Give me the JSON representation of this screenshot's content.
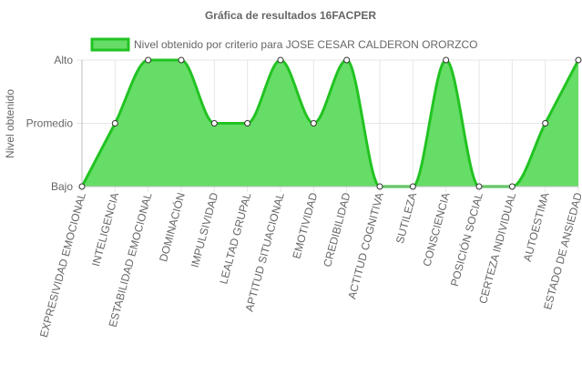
{
  "chart_data": {
    "type": "line",
    "title": "Gráfica de resultados 16FACPER",
    "ylabel": "Nivel obtenido",
    "xlabel": "",
    "y_levels": [
      "Bajo",
      "Promedio",
      "Alto"
    ],
    "ylim": [
      0,
      2
    ],
    "categories": [
      "EXPRESIVIDAD EMOCIONAL",
      "INTELIGENCIA",
      "ESTABILIDAD EMOCIONAL",
      "DOMINACIÓN",
      "IMPULSIVIDAD",
      "LEALTAD GRUPAL",
      "APTITUD SITUACIONAL",
      "EMOTIVIDAD",
      "CREDIBILIDAD",
      "ACTITUD COGNITIVA",
      "SUTILEZA",
      "CONSCIENCIA",
      "POSICIÓN SOCIAL",
      "CERTEZA INDIVIDUAL",
      "AUTOESTIMA",
      "ESTADO DE ANSIEDAD"
    ],
    "series": [
      {
        "name": "Nivel obtenido por criterio para JOSE CESAR CALDERON ORORZCO",
        "values": [
          0,
          1,
          2,
          2,
          1,
          1,
          2,
          1,
          2,
          0,
          0,
          2,
          0,
          0,
          1,
          2
        ],
        "color": "#22c322",
        "fill": "#66dd66"
      }
    ],
    "grid": true,
    "legend_position": "top"
  }
}
